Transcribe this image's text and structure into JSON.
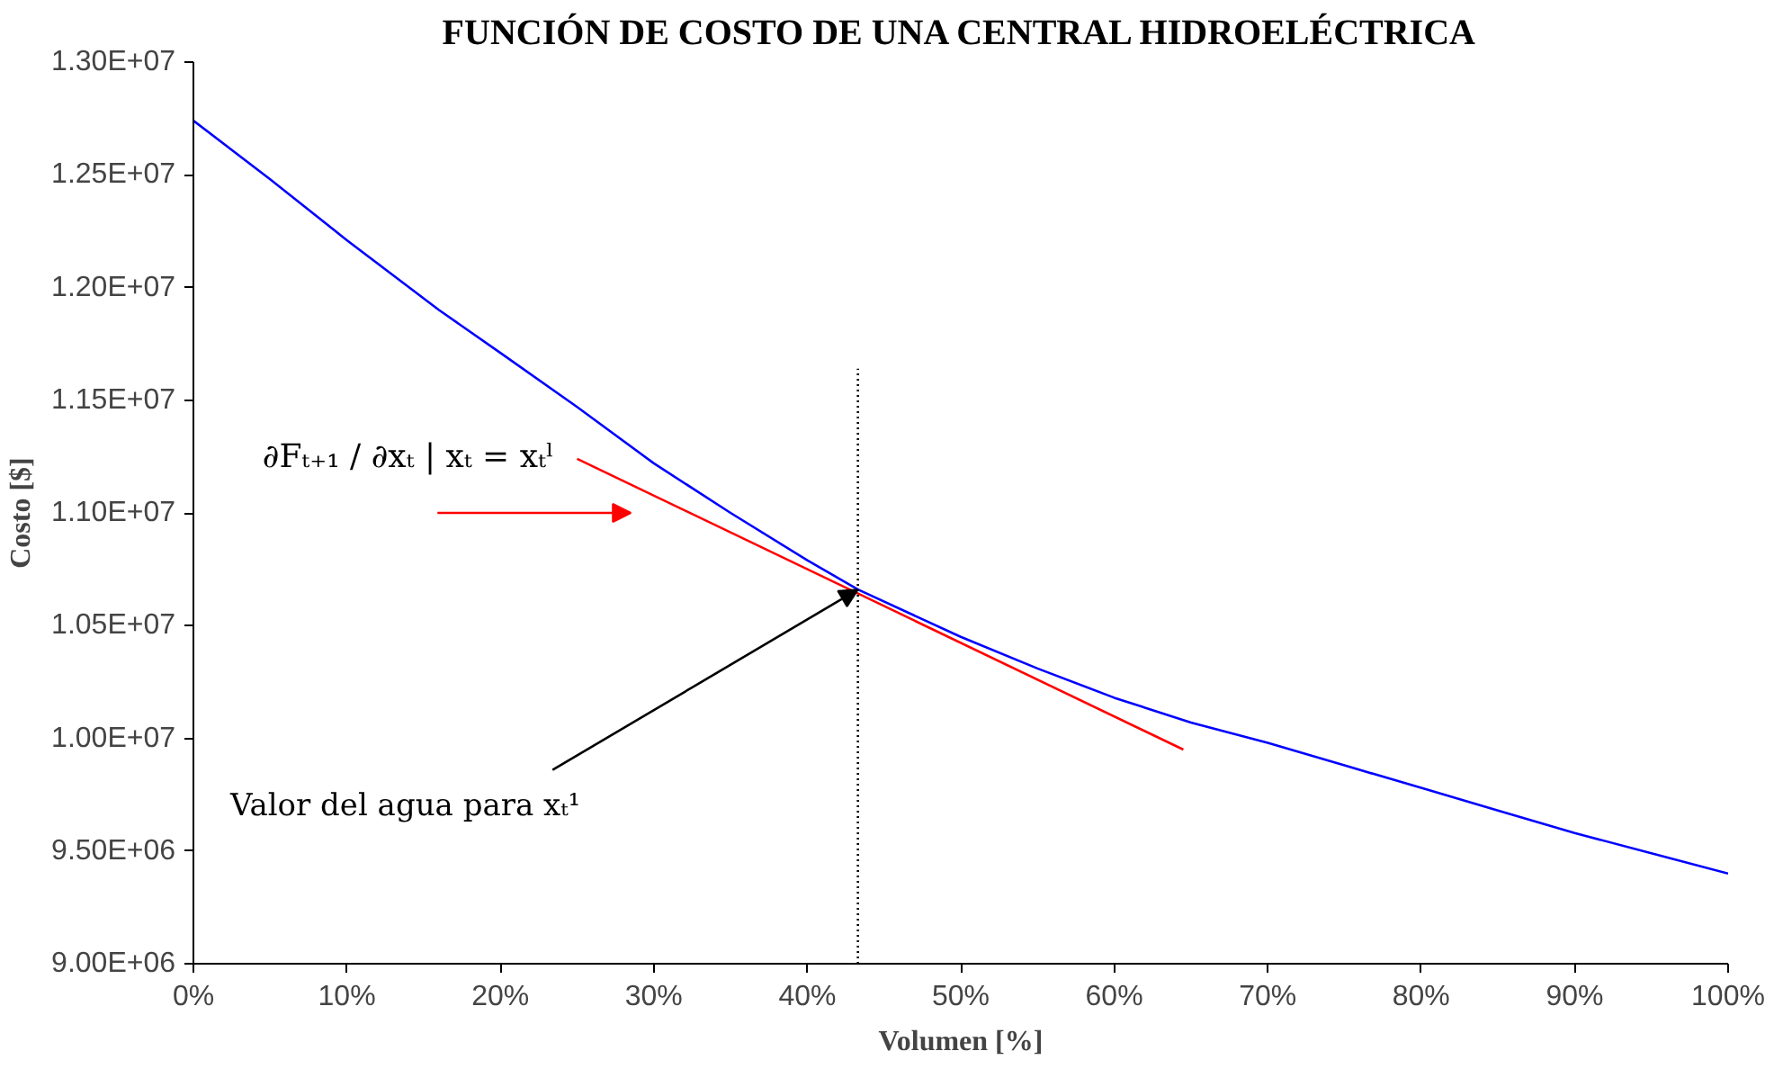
{
  "chart_data": {
    "type": "line",
    "title": "FUNCIÓN DE COSTO DE UNA CENTRAL HIDROELÉCTRICA",
    "xlabel": "Volumen [%]",
    "ylabel": "Costo [$]",
    "series": [
      {
        "color": "#0000ff",
        "x": [
          0,
          5,
          10,
          16,
          20,
          25,
          30,
          35,
          40,
          43.3,
          50,
          55,
          60,
          65,
          70,
          75,
          80,
          85,
          90,
          95,
          100
        ],
        "values": [
          12740000,
          12480000,
          12210000,
          11900000,
          11710000,
          11470000,
          11220000,
          11000000,
          10790000,
          10660000,
          10450000,
          10310000,
          10180000,
          10070000,
          9980000,
          9880000,
          9780000,
          9680000,
          9580000,
          9490000,
          9400000
        ]
      },
      {
        "color": "#ff0000",
        "x": [
          25,
          64.5
        ],
        "values": [
          11240000,
          9950000
        ]
      },
      {
        "color": "#000000",
        "line_style": "dotted",
        "x": [
          43.3,
          43.3
        ],
        "values": [
          9000000,
          11640000
        ]
      }
    ],
    "annotations": [
      {
        "text": "∂Fₜ₊₁ / ∂xₜ | xₜ = xₜˡ",
        "x": 28.5,
        "y": 11126000
      },
      {
        "text": "Valor del agua para xₜ¹",
        "x": 43.3,
        "y": 10660000
      }
    ],
    "xlim": [
      0,
      100
    ],
    "ylim": [
      9000000,
      13000000
    ],
    "xticks": [
      {
        "value": 0,
        "label": "0%"
      },
      {
        "value": 10,
        "label": "10%"
      },
      {
        "value": 20,
        "label": "20%"
      },
      {
        "value": 30,
        "label": "30%"
      },
      {
        "value": 40,
        "label": "40%"
      },
      {
        "value": 50,
        "label": "50%"
      },
      {
        "value": 60,
        "label": "60%"
      },
      {
        "value": 70,
        "label": "70%"
      },
      {
        "value": 80,
        "label": "80%"
      },
      {
        "value": 90,
        "label": "90%"
      },
      {
        "value": 100,
        "label": "100%"
      }
    ],
    "yticks": [
      {
        "value": 9000000,
        "label": "9.00E+06"
      },
      {
        "value": 9500000,
        "label": "9.50E+06"
      },
      {
        "value": 10000000,
        "label": "1.00E+07"
      },
      {
        "value": 10500000,
        "label": "1.05E+07"
      },
      {
        "value": 11000000,
        "label": "1.10E+07"
      },
      {
        "value": 11500000,
        "label": "1.15E+07"
      },
      {
        "value": 12000000,
        "label": "1.20E+07"
      },
      {
        "value": 12500000,
        "label": "1.25E+07"
      },
      {
        "value": 13000000,
        "label": "1.30E+07"
      }
    ],
    "grid": false,
    "marker": "none",
    "line_style": "solid"
  }
}
